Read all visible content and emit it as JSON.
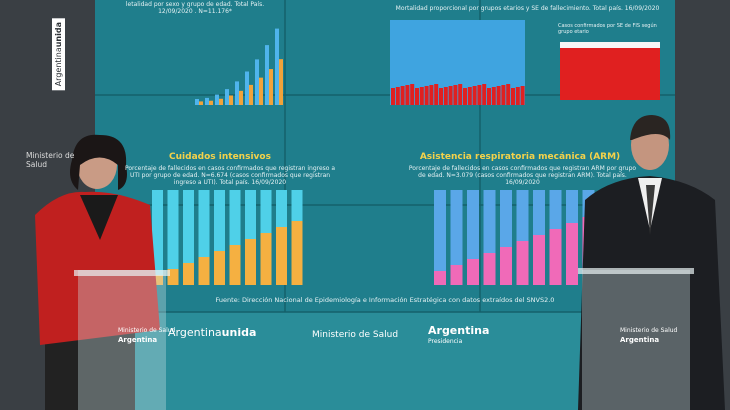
{
  "screen": {
    "top_left": {
      "subtitle": "letalidad por sexo y grupo de edad. Total País. 12/09/2020 . N=11.176*"
    },
    "top_right": {
      "subtitle": "Mortalidad proporcional por grupos etarios y SE de fallecimiento. Total país. 16/09/2020",
      "inset_title": "Casos confirmados por SE de FIS según grupo etario"
    },
    "bottom_left": {
      "title": "Cuidados intensivos",
      "subtitle": "Porcentaje de fallecidos en casos confirmados que registran ingreso a UTI por grupo de edad. N=6.674 (casos confirmados que registran ingreso a UTI). Total país. 16/09/2020"
    },
    "bottom_right": {
      "title": "Asistencia respiratoria mecánica (ARM)",
      "subtitle": "Porcentaje de fallecidos en casos confirmados que registran ARM por grupo de edad. N=3.079 (casos confirmados que registran ARM). Total país. 16/09/2020"
    },
    "source": "Fuente: Dirección Nacional de Epidemiología e Información Estratégica con datos extraídos del SNVS2.0"
  },
  "banner": {
    "brand": "Argentina",
    "brand_bold": "unida",
    "ministry": "Ministerio de Salud",
    "government": "Argentina",
    "government_sub": "Presidencia"
  },
  "side": {
    "brand": "Argentina",
    "brand_bold": "unida",
    "ministry": "Ministerio de Salud"
  },
  "podium": {
    "line1": "Ministerio de Salud",
    "line2": "Argentina"
  }
}
